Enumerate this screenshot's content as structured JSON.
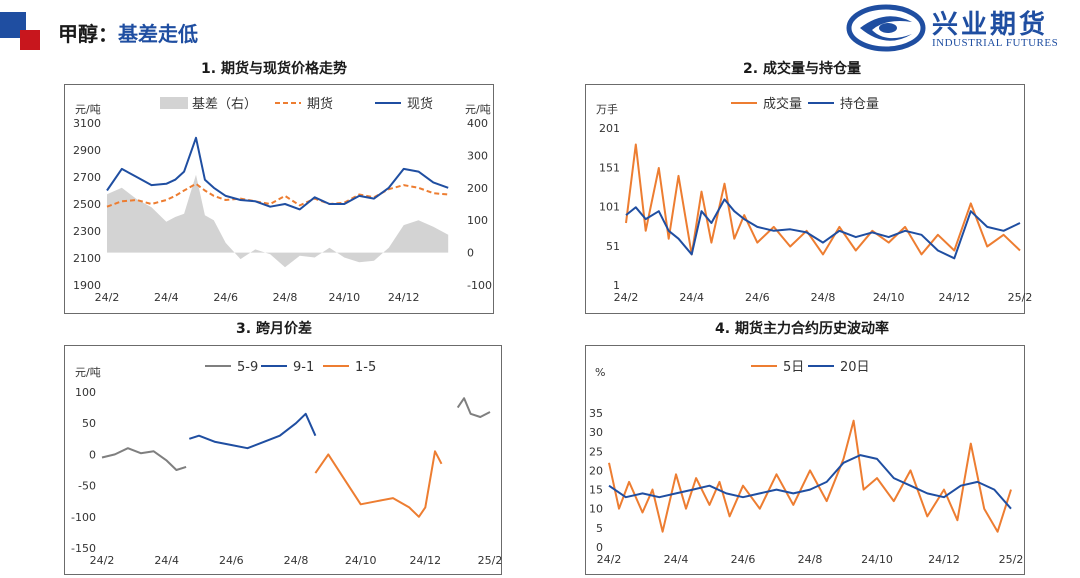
{
  "page": {
    "title_prefix": "甲醇：",
    "title_main": "基差走低",
    "logo_cn": "兴业期货",
    "logo_en": "INDUSTRIAL FUTURES"
  },
  "colors": {
    "brand_blue": "#1f4ea1",
    "brand_red": "#c8161d",
    "orange": "#ed7d31",
    "gray": "#7f7f7f",
    "area": "#d3d3d3"
  },
  "chart_data": [
    {
      "type": "line",
      "title": "1. 期货与现货价格走势",
      "ylabel": "元/吨",
      "ylabel_right": "元/吨",
      "ylim": [
        1900,
        3100
      ],
      "y_ticks": [
        "3100",
        "2900",
        "2700",
        "2500",
        "2300",
        "2100",
        "1900"
      ],
      "ylim_right": [
        -100,
        400
      ],
      "y2_ticks": [
        "400",
        "300",
        "200",
        "100",
        "0",
        "-100"
      ],
      "x_ticks": [
        "24/2",
        "24/4",
        "24/6",
        "24/8",
        "24/10",
        "24/12"
      ],
      "x_range": [
        "24/2",
        "25/2"
      ],
      "legend_position": "top",
      "grid": false,
      "series": [
        {
          "name": "基差（右）",
          "style": "area",
          "axis": "right",
          "color": "#d3d3d3",
          "x": [
            "24/2",
            "24/2.5",
            "24/3",
            "24/3.5",
            "24/4",
            "24/4.3",
            "24/4.6",
            "24/5",
            "24/5.3",
            "24/5.6",
            "24/6",
            "24/6.5",
            "24/7",
            "24/7.5",
            "24/8",
            "24/8.5",
            "24/9",
            "24/9.5",
            "24/10",
            "24/10.5",
            "24/11",
            "24/11.5",
            "24/12",
            "24/12.5",
            "25/1",
            "25/1.5"
          ],
          "values": [
            180,
            200,
            165,
            140,
            95,
            110,
            120,
            240,
            115,
            100,
            30,
            -20,
            10,
            -5,
            -45,
            -10,
            -15,
            15,
            -15,
            -30,
            -25,
            15,
            85,
            100,
            80,
            55
          ]
        },
        {
          "name": "期货",
          "style": "dashed",
          "axis": "left",
          "color": "#ed7d31",
          "x": [
            "24/2",
            "24/2.5",
            "24/3",
            "24/3.5",
            "24/4",
            "24/4.3",
            "24/4.6",
            "24/5",
            "24/5.3",
            "24/5.6",
            "24/6",
            "24/6.5",
            "24/7",
            "24/7.5",
            "24/8",
            "24/8.5",
            "24/9",
            "24/9.5",
            "24/10",
            "24/10.5",
            "24/11",
            "24/11.5",
            "24/12",
            "24/12.5",
            "25/1",
            "25/1.5"
          ],
          "values": [
            2480,
            2520,
            2530,
            2500,
            2530,
            2560,
            2600,
            2650,
            2600,
            2560,
            2530,
            2540,
            2520,
            2500,
            2560,
            2490,
            2540,
            2500,
            2510,
            2570,
            2550,
            2610,
            2640,
            2620,
            2580,
            2570
          ]
        },
        {
          "name": "现货",
          "style": "solid",
          "axis": "left",
          "color": "#1f4ea1",
          "x": [
            "24/2",
            "24/2.5",
            "24/3",
            "24/3.5",
            "24/4",
            "24/4.3",
            "24/4.6",
            "24/5",
            "24/5.3",
            "24/5.6",
            "24/6",
            "24/6.5",
            "24/7",
            "24/7.5",
            "24/8",
            "24/8.5",
            "24/9",
            "24/9.5",
            "24/10",
            "24/10.5",
            "24/11",
            "24/11.5",
            "24/12",
            "24/12.5",
            "25/1",
            "25/1.5"
          ],
          "values": [
            2600,
            2760,
            2700,
            2640,
            2650,
            2680,
            2740,
            2990,
            2680,
            2620,
            2560,
            2530,
            2520,
            2480,
            2500,
            2460,
            2550,
            2500,
            2500,
            2560,
            2540,
            2620,
            2760,
            2740,
            2660,
            2620
          ]
        }
      ]
    },
    {
      "type": "line",
      "title": "2. 成交量与持仓量",
      "ylabel": "万手",
      "ylim": [
        1,
        201
      ],
      "y_ticks": [
        "201",
        "151",
        "101",
        "51",
        "1"
      ],
      "x_ticks": [
        "24/2",
        "24/4",
        "24/6",
        "24/8",
        "24/10",
        "24/12",
        "25/2"
      ],
      "x_range": [
        "24/2",
        "25/2"
      ],
      "legend_position": "top",
      "grid": false,
      "series": [
        {
          "name": "成交量",
          "style": "solid",
          "color": "#ed7d31",
          "x": [
            "24/2",
            "24/2.3",
            "24/2.6",
            "24/3",
            "24/3.3",
            "24/3.6",
            "24/4",
            "24/4.3",
            "24/4.6",
            "24/5",
            "24/5.3",
            "24/5.6",
            "24/6",
            "24/6.5",
            "24/7",
            "24/7.5",
            "24/8",
            "24/8.5",
            "24/9",
            "24/9.5",
            "24/10",
            "24/10.5",
            "24/11",
            "24/11.5",
            "24/12",
            "24/12.5",
            "25/1",
            "25/1.5",
            "25/2"
          ],
          "values": [
            80,
            180,
            70,
            150,
            60,
            140,
            40,
            120,
            55,
            130,
            60,
            90,
            55,
            75,
            50,
            70,
            40,
            75,
            45,
            70,
            55,
            75,
            40,
            65,
            45,
            105,
            50,
            65,
            45
          ]
        },
        {
          "name": "持仓量",
          "style": "solid",
          "color": "#1f4ea1",
          "x": [
            "24/2",
            "24/2.3",
            "24/2.6",
            "24/3",
            "24/3.3",
            "24/3.6",
            "24/4",
            "24/4.3",
            "24/4.6",
            "24/5",
            "24/5.3",
            "24/5.6",
            "24/6",
            "24/6.5",
            "24/7",
            "24/7.5",
            "24/8",
            "24/8.5",
            "24/9",
            "24/9.5",
            "24/10",
            "24/10.5",
            "24/11",
            "24/11.5",
            "24/12",
            "24/12.5",
            "25/1",
            "25/1.5",
            "25/2"
          ],
          "values": [
            90,
            100,
            85,
            95,
            70,
            60,
            40,
            95,
            80,
            110,
            95,
            85,
            75,
            70,
            72,
            68,
            55,
            70,
            62,
            68,
            62,
            70,
            65,
            45,
            35,
            95,
            75,
            70,
            80
          ]
        }
      ]
    },
    {
      "type": "line",
      "title": "3. 跨月价差",
      "ylabel": "元/吨",
      "ylim": [
        -150,
        100
      ],
      "y_ticks": [
        "100",
        "50",
        "0",
        "-50",
        "-100",
        "-150"
      ],
      "x_ticks": [
        "24/2",
        "24/4",
        "24/6",
        "24/8",
        "24/10",
        "24/12",
        "25/2"
      ],
      "x_range": [
        "24/2",
        "25/2"
      ],
      "legend_position": "top",
      "grid": false,
      "series": [
        {
          "name": "5-9",
          "style": "solid",
          "color": "#7f7f7f",
          "x": [
            "24/2",
            "24/2.4",
            "24/2.8",
            "24/3.2",
            "24/3.6",
            "24/4",
            "24/4.3",
            "24/4.6"
          ],
          "values": [
            -5,
            0,
            10,
            2,
            5,
            -10,
            -25,
            -20
          ]
        },
        {
          "name": "5-9",
          "style": "solid",
          "color": "#7f7f7f",
          "x": [
            "25/1",
            "25/1.2",
            "25/1.4",
            "25/1.7",
            "25/2"
          ],
          "values": [
            75,
            90,
            65,
            60,
            68
          ]
        },
        {
          "name": "9-1",
          "style": "solid",
          "color": "#1f4ea1",
          "x": [
            "24/4.7",
            "24/5",
            "24/5.5",
            "24/6",
            "24/6.5",
            "24/7",
            "24/7.5",
            "24/8",
            "24/8.3",
            "24/8.6"
          ],
          "values": [
            25,
            30,
            20,
            15,
            10,
            20,
            30,
            50,
            65,
            30
          ]
        },
        {
          "name": "1-5",
          "style": "solid",
          "color": "#ed7d31",
          "x": [
            "24/8.6",
            "24/9",
            "24/9.5",
            "24/10",
            "24/10.5",
            "24/11",
            "24/11.5",
            "24/11.8",
            "24/12",
            "24/12.3",
            "24/12.5"
          ],
          "values": [
            -30,
            0,
            -40,
            -80,
            -75,
            -70,
            -85,
            -100,
            -85,
            5,
            -15
          ]
        }
      ]
    },
    {
      "type": "line",
      "title": "4. 期货主力合约历史波动率",
      "ylabel": "%",
      "ylim": [
        0,
        35
      ],
      "y_ticks": [
        "35",
        "30",
        "25",
        "20",
        "15",
        "10",
        "5",
        "0"
      ],
      "x_ticks": [
        "24/2",
        "24/4",
        "24/6",
        "24/8",
        "24/10",
        "24/12",
        "25/2"
      ],
      "x_range": [
        "24/2",
        "25/2"
      ],
      "legend_position": "top",
      "grid": false,
      "series": [
        {
          "name": "5日",
          "style": "solid",
          "color": "#ed7d31",
          "x": [
            "24/2",
            "24/2.3",
            "24/2.6",
            "24/3",
            "24/3.3",
            "24/3.6",
            "24/4",
            "24/4.3",
            "24/4.6",
            "24/5",
            "24/5.3",
            "24/5.6",
            "24/6",
            "24/6.5",
            "24/7",
            "24/7.5",
            "24/8",
            "24/8.5",
            "24/9",
            "24/9.3",
            "24/9.6",
            "24/10",
            "24/10.5",
            "24/11",
            "24/11.5",
            "24/12",
            "24/12.4",
            "24/12.8",
            "25/1.2",
            "25/1.6",
            "25/2"
          ],
          "values": [
            22,
            10,
            17,
            9,
            15,
            4,
            19,
            10,
            18,
            11,
            17,
            8,
            16,
            10,
            19,
            11,
            20,
            12,
            23,
            33,
            15,
            18,
            12,
            20,
            8,
            15,
            7,
            27,
            10,
            4,
            15
          ]
        },
        {
          "name": "20日",
          "style": "solid",
          "color": "#1f4ea1",
          "x": [
            "24/2",
            "24/2.5",
            "24/3",
            "24/3.5",
            "24/4",
            "24/4.5",
            "24/5",
            "24/5.5",
            "24/6",
            "24/6.5",
            "24/7",
            "24/7.5",
            "24/8",
            "24/8.5",
            "24/9",
            "24/9.5",
            "24/10",
            "24/10.5",
            "24/11",
            "24/11.5",
            "24/12",
            "24/12.5",
            "25/1",
            "25/1.5",
            "25/2"
          ],
          "values": [
            16,
            13,
            14,
            13,
            14,
            15,
            16,
            14,
            13,
            14,
            15,
            14,
            15,
            17,
            22,
            24,
            23,
            18,
            16,
            14,
            13,
            16,
            17,
            15,
            10
          ]
        }
      ]
    }
  ]
}
